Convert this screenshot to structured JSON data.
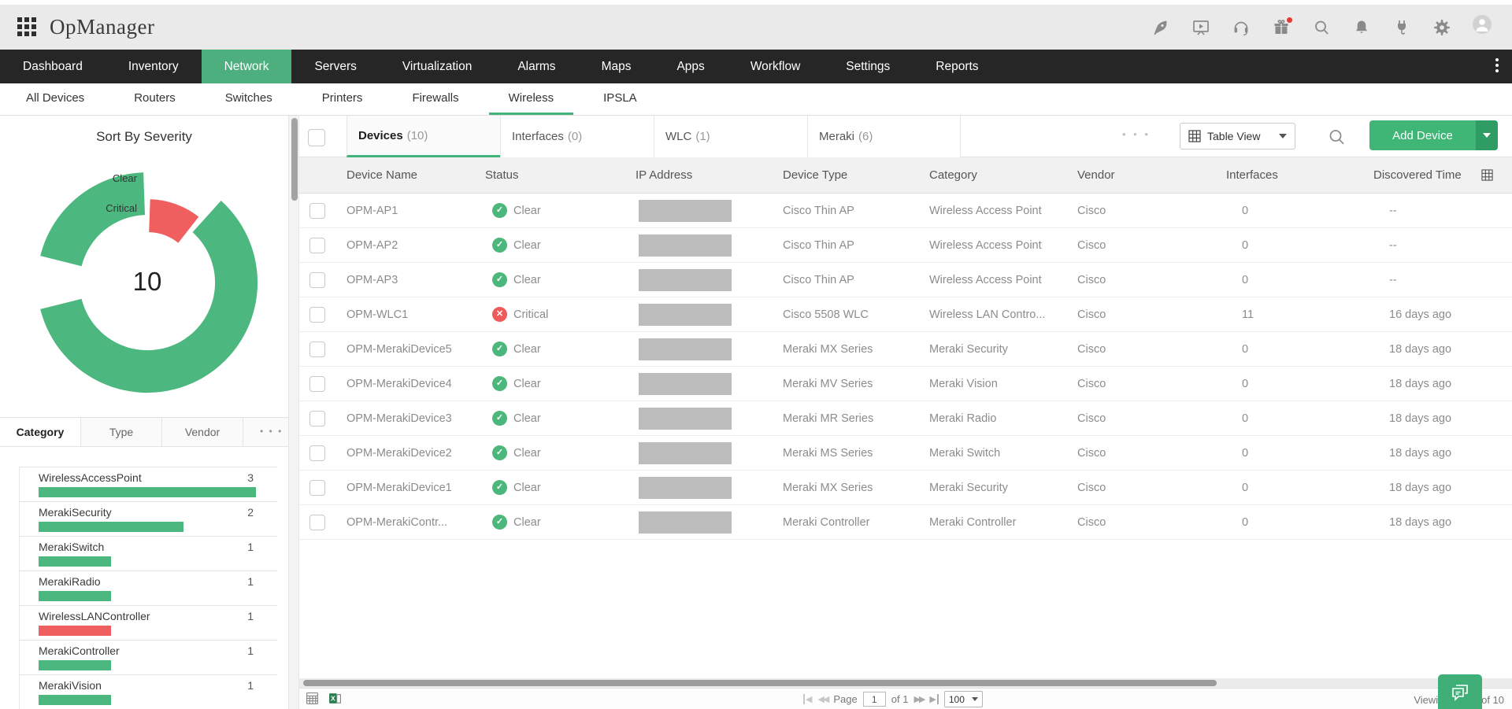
{
  "header": {
    "app_title": "OpManager",
    "icon_names": [
      "rocket-icon",
      "presentation-icon",
      "headset-icon",
      "gift-icon",
      "zoom-search-icon",
      "bell-icon",
      "plug-icon",
      "gear-icon",
      "avatar"
    ],
    "gift_badge_color": "#E53935"
  },
  "nav": {
    "bg_color": "#262626",
    "active_color": "#4CAF7D",
    "items": [
      {
        "label": "Dashboard",
        "active": false
      },
      {
        "label": "Inventory",
        "active": false
      },
      {
        "label": "Network",
        "active": true
      },
      {
        "label": "Servers",
        "active": false
      },
      {
        "label": "Virtualization",
        "active": false
      },
      {
        "label": "Alarms",
        "active": false
      },
      {
        "label": "Maps",
        "active": false
      },
      {
        "label": "Apps",
        "active": false
      },
      {
        "label": "Workflow",
        "active": false
      },
      {
        "label": "Settings",
        "active": false
      },
      {
        "label": "Reports",
        "active": false
      }
    ]
  },
  "subnav": {
    "active_underline_color": "#44B27C",
    "items": [
      {
        "label": "All Devices",
        "active": false
      },
      {
        "label": "Routers",
        "active": false
      },
      {
        "label": "Switches",
        "active": false
      },
      {
        "label": "Printers",
        "active": false
      },
      {
        "label": "Firewalls",
        "active": false
      },
      {
        "label": "Wireless",
        "active": true
      },
      {
        "label": "IPSLA",
        "active": false
      }
    ]
  },
  "sidebar": {
    "severity_chart": {
      "type": "donut",
      "title": "Sort By Severity",
      "total": "10",
      "slices": [
        {
          "label": "Clear",
          "value": 9,
          "color": "#4CB77E"
        },
        {
          "label": "Critical",
          "value": 1,
          "color": "#F05F5F"
        }
      ]
    },
    "group_tabs": [
      {
        "label": "Category",
        "active": true
      },
      {
        "label": "Type",
        "active": false
      },
      {
        "label": "Vendor",
        "active": false
      }
    ],
    "more_dots": "• • •",
    "categories_chart": {
      "type": "bar",
      "max_value": 3,
      "items": [
        {
          "label": "WirelessAccessPoint",
          "value": 3,
          "color": "#4CB77E"
        },
        {
          "label": "MerakiSecurity",
          "value": 2,
          "color": "#4CB77E"
        },
        {
          "label": "MerakiSwitch",
          "value": 1,
          "color": "#4CB77E"
        },
        {
          "label": "MerakiRadio",
          "value": 1,
          "color": "#4CB77E"
        },
        {
          "label": "WirelessLANController",
          "value": 1,
          "color": "#F05F5F"
        },
        {
          "label": "MerakiController",
          "value": 1,
          "color": "#4CB77E"
        },
        {
          "label": "MerakiVision",
          "value": 1,
          "color": "#4CB77E"
        }
      ]
    }
  },
  "main": {
    "tabs": [
      {
        "label": "Devices",
        "count": "(10)",
        "active": true
      },
      {
        "label": "Interfaces",
        "count": "(0)",
        "active": false
      },
      {
        "label": "WLC",
        "count": "(1)",
        "active": false
      },
      {
        "label": "Meraki",
        "count": "(6)",
        "active": false
      }
    ],
    "toolbar": {
      "more_dots": "• • •",
      "table_view_label": "Table View",
      "add_device_label": "Add Device",
      "add_color": "#3FB576",
      "add_caret_color": "#2F9D63"
    },
    "table": {
      "columns": [
        "Device Name",
        "Status",
        "IP Address",
        "Device Type",
        "Category",
        "Vendor",
        "Interfaces",
        "Discovered Time"
      ],
      "status_colors": {
        "Clear": "#4CB77B",
        "Critical": "#EF5A5A"
      },
      "rows": [
        {
          "name": "OPM-AP1",
          "status": "Clear",
          "device_type": "Cisco Thin AP",
          "category": "Wireless Access Point",
          "vendor": "Cisco",
          "interfaces": "0",
          "discovered": "--"
        },
        {
          "name": "OPM-AP2",
          "status": "Clear",
          "device_type": "Cisco Thin AP",
          "category": "Wireless Access Point",
          "vendor": "Cisco",
          "interfaces": "0",
          "discovered": "--"
        },
        {
          "name": "OPM-AP3",
          "status": "Clear",
          "device_type": "Cisco Thin AP",
          "category": "Wireless Access Point",
          "vendor": "Cisco",
          "interfaces": "0",
          "discovered": "--"
        },
        {
          "name": "OPM-WLC1",
          "status": "Critical",
          "device_type": "Cisco 5508 WLC",
          "category": "Wireless LAN Contro...",
          "vendor": "Cisco",
          "interfaces": "11",
          "discovered": "16 days ago"
        },
        {
          "name": "OPM-MerakiDevice5",
          "status": "Clear",
          "device_type": "Meraki MX Series",
          "category": "Meraki Security",
          "vendor": "Cisco",
          "interfaces": "0",
          "discovered": "18 days ago"
        },
        {
          "name": "OPM-MerakiDevice4",
          "status": "Clear",
          "device_type": "Meraki MV Series",
          "category": "Meraki Vision",
          "vendor": "Cisco",
          "interfaces": "0",
          "discovered": "18 days ago"
        },
        {
          "name": "OPM-MerakiDevice3",
          "status": "Clear",
          "device_type": "Meraki MR Series",
          "category": "Meraki Radio",
          "vendor": "Cisco",
          "interfaces": "0",
          "discovered": "18 days ago"
        },
        {
          "name": "OPM-MerakiDevice2",
          "status": "Clear",
          "device_type": "Meraki MS Series",
          "category": "Meraki Switch",
          "vendor": "Cisco",
          "interfaces": "0",
          "discovered": "18 days ago"
        },
        {
          "name": "OPM-MerakiDevice1",
          "status": "Clear",
          "device_type": "Meraki MX Series",
          "category": "Meraki Security",
          "vendor": "Cisco",
          "interfaces": "0",
          "discovered": "18 days ago"
        },
        {
          "name": "OPM-MerakiContr...",
          "status": "Clear",
          "device_type": "Meraki Controller",
          "category": "Meraki Controller",
          "vendor": "Cisco",
          "interfaces": "0",
          "discovered": "18 days ago"
        }
      ]
    },
    "footer": {
      "page_label": "Page",
      "page_value": "1",
      "of_label": "of 1",
      "page_size": "100",
      "viewing_text": "Viewing 1 - 10 of 10"
    }
  }
}
